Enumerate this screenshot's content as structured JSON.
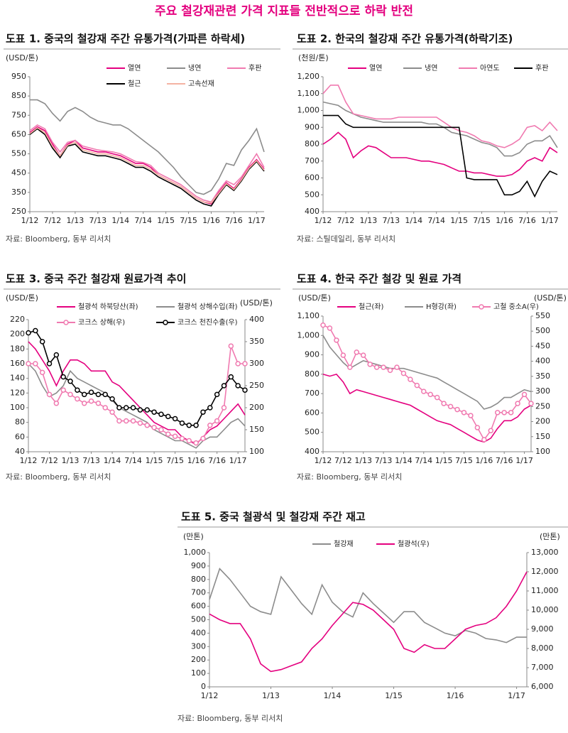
{
  "title": "주요 철강재관련 가격 지표들 전반적으로 하락 반전",
  "chart_data": [
    {
      "type": "line",
      "title": "도표 1. 중국의 철강재 주간 유통가격(가파른 하락세)",
      "y_label": "(USD/톤)",
      "source": "자료: Bloomberg, 동부 리서치",
      "categories": [
        "1/12",
        null,
        null,
        "7/12",
        null,
        null,
        "1/13",
        null,
        null,
        "7/13",
        null,
        null,
        "1/14",
        null,
        null,
        "7/14",
        null,
        null,
        "1/15",
        null,
        null,
        "7/15",
        null,
        null,
        "1/16",
        null,
        null,
        "7/16",
        null,
        null,
        "1/17",
        null
      ],
      "ylim": [
        250,
        950
      ],
      "yticks": [
        250,
        350,
        450,
        550,
        650,
        750,
        850,
        950
      ],
      "series": [
        {
          "name": "열연",
          "color": "#e4007f",
          "values": [
            660,
            690,
            670,
            600,
            540,
            600,
            620,
            580,
            570,
            560,
            560,
            550,
            540,
            520,
            500,
            500,
            480,
            440,
            420,
            400,
            380,
            350,
            320,
            300,
            290,
            350,
            400,
            370,
            420,
            480,
            520,
            470
          ]
        },
        {
          "name": "냉연",
          "color": "#8c8c8c",
          "values": [
            830,
            830,
            810,
            760,
            720,
            770,
            790,
            770,
            740,
            720,
            710,
            700,
            700,
            680,
            650,
            620,
            590,
            560,
            520,
            480,
            430,
            390,
            350,
            340,
            360,
            420,
            500,
            490,
            570,
            620,
            680,
            560
          ]
        },
        {
          "name": "후판",
          "color": "#f07ab0",
          "values": [
            670,
            700,
            680,
            610,
            560,
            610,
            620,
            590,
            580,
            570,
            565,
            560,
            550,
            530,
            510,
            505,
            490,
            450,
            430,
            410,
            390,
            360,
            330,
            310,
            300,
            360,
            410,
            390,
            430,
            490,
            550,
            480
          ]
        },
        {
          "name": "철근",
          "color": "#000000",
          "values": [
            650,
            680,
            650,
            580,
            530,
            590,
            600,
            560,
            550,
            540,
            540,
            530,
            520,
            500,
            480,
            480,
            460,
            430,
            410,
            390,
            370,
            340,
            310,
            290,
            280,
            340,
            390,
            360,
            410,
            470,
            510,
            460
          ]
        },
        {
          "name": "고속선재",
          "color": "#f4b3a3",
          "values": [
            655,
            685,
            660,
            590,
            540,
            595,
            610,
            570,
            560,
            550,
            550,
            540,
            530,
            510,
            490,
            490,
            470,
            440,
            420,
            400,
            380,
            350,
            320,
            300,
            295,
            345,
            395,
            365,
            415,
            475,
            515,
            465
          ]
        }
      ]
    },
    {
      "type": "line",
      "title": "도표 2. 한국의 철강재 주간 유통가격(하락기조)",
      "y_label": "(천원/톤)",
      "source": "자료: 스틸데일리, 동부 리서치",
      "categories": [
        "1/12",
        null,
        null,
        "7/12",
        null,
        null,
        "1/13",
        null,
        null,
        "7/13",
        null,
        null,
        "1/14",
        null,
        null,
        "7/14",
        null,
        null,
        "1/15",
        null,
        null,
        "7/15",
        null,
        null,
        "1/16",
        null,
        null,
        "7/16",
        null,
        null,
        "1/17",
        null
      ],
      "ylim": [
        400,
        1200
      ],
      "yticks": [
        400,
        500,
        600,
        700,
        800,
        900,
        {
          "value": 1000,
          "label": "1,000"
        },
        {
          "value": 1100,
          "label": "1,100"
        },
        {
          "value": 1200,
          "label": "1,200"
        }
      ],
      "series": [
        {
          "name": "열연",
          "color": "#e4007f",
          "values": [
            800,
            830,
            870,
            830,
            720,
            760,
            790,
            780,
            750,
            720,
            720,
            720,
            710,
            700,
            700,
            690,
            680,
            660,
            640,
            640,
            630,
            630,
            620,
            610,
            610,
            620,
            650,
            700,
            720,
            700,
            780,
            750
          ]
        },
        {
          "name": "냉연",
          "color": "#8c8c8c",
          "values": [
            1050,
            1040,
            1030,
            1000,
            980,
            960,
            950,
            940,
            930,
            930,
            930,
            930,
            930,
            930,
            920,
            920,
            900,
            870,
            860,
            850,
            830,
            810,
            800,
            780,
            730,
            730,
            750,
            800,
            820,
            820,
            850,
            780
          ]
        },
        {
          "name": "아연도",
          "color": "#f07ab0",
          "values": [
            1100,
            1150,
            1150,
            1050,
            980,
            970,
            960,
            950,
            950,
            950,
            960,
            960,
            960,
            960,
            960,
            960,
            930,
            900,
            880,
            870,
            850,
            820,
            810,
            790,
            780,
            800,
            830,
            900,
            910,
            880,
            930,
            880
          ]
        },
        {
          "name": "후판",
          "color": "#000000",
          "values": [
            970,
            970,
            970,
            920,
            900,
            900,
            900,
            900,
            900,
            900,
            900,
            900,
            900,
            900,
            900,
            900,
            900,
            900,
            900,
            600,
            590,
            590,
            590,
            590,
            500,
            500,
            520,
            580,
            490,
            580,
            640,
            620
          ]
        }
      ]
    },
    {
      "type": "line",
      "title": "도표 3. 중국 주간 철강재 원료가격 추이",
      "y_label": "(USD/톤)",
      "y2_label": "(USD/톤)",
      "source": "자료: Bloomberg, 동부 리서치",
      "categories": [
        "1/12",
        null,
        null,
        "7/12",
        null,
        null,
        "1/13",
        null,
        null,
        "7/13",
        null,
        null,
        "1/14",
        null,
        null,
        "7/14",
        null,
        null,
        "1/15",
        null,
        null,
        "7/15",
        null,
        null,
        "1/16",
        null,
        null,
        "7/16",
        null,
        null,
        "1/17",
        null
      ],
      "ylim": [
        40,
        220
      ],
      "yticks": [
        40,
        60,
        80,
        100,
        120,
        140,
        160,
        180,
        200,
        220
      ],
      "y2lim": [
        100,
        400
      ],
      "y2ticks": [
        100,
        150,
        200,
        250,
        300,
        350,
        400
      ],
      "series": [
        {
          "name": "철광석 하북당산(좌)",
          "color": "#e4007f",
          "values": [
            190,
            180,
            165,
            150,
            130,
            150,
            165,
            165,
            160,
            150,
            150,
            150,
            135,
            130,
            120,
            110,
            100,
            90,
            80,
            75,
            70,
            70,
            60,
            55,
            50,
            60,
            70,
            75,
            85,
            95,
            105,
            90
          ]
        },
        {
          "name": "철광석 상해수입(좌)",
          "color": "#8c8c8c",
          "values": [
            160,
            150,
            130,
            115,
            120,
            130,
            150,
            140,
            135,
            130,
            125,
            120,
            110,
            100,
            95,
            90,
            85,
            80,
            70,
            65,
            60,
            55,
            55,
            50,
            45,
            55,
            60,
            60,
            70,
            80,
            85,
            75
          ]
        },
        {
          "name": "코크스 상해(우)",
          "color": "#f07ab0",
          "axis": "y2",
          "marker": "o",
          "values": [
            300,
            300,
            280,
            230,
            210,
            240,
            230,
            220,
            210,
            215,
            210,
            200,
            190,
            170,
            170,
            170,
            165,
            160,
            155,
            150,
            140,
            135,
            130,
            125,
            120,
            130,
            160,
            170,
            200,
            340,
            300,
            300
          ]
        },
        {
          "name": "코크스 천진수출(우)",
          "color": "#000000",
          "axis": "y2",
          "marker": "o",
          "values": [
            370,
            375,
            350,
            300,
            320,
            270,
            260,
            240,
            230,
            235,
            230,
            230,
            220,
            200,
            200,
            200,
            195,
            195,
            190,
            185,
            180,
            175,
            165,
            160,
            160,
            190,
            200,
            230,
            250,
            270,
            250,
            240
          ]
        }
      ]
    },
    {
      "type": "line",
      "title": "도표 4. 한국 주간 철강 및 원료 가격",
      "y_label": "(USD/톤)",
      "y2_label": "(USD/톤)",
      "source": "자료: Bloomberg, 동부 리서치",
      "categories": [
        "1/12",
        null,
        null,
        "7/12",
        null,
        null,
        "1/13",
        null,
        null,
        "7/13",
        null,
        null,
        "1/14",
        null,
        null,
        "7/14",
        null,
        null,
        "1/15",
        null,
        null,
        "7/15",
        null,
        null,
        "1/16",
        null,
        null,
        "7/16",
        null,
        null,
        "1/17",
        null
      ],
      "ylim": [
        400,
        1100
      ],
      "yticks": [
        400,
        500,
        600,
        700,
        800,
        900,
        {
          "value": 1000,
          "label": "1,000"
        },
        {
          "value": 1100,
          "label": "1,100"
        }
      ],
      "y2lim": [
        100,
        550
      ],
      "y2ticks": [
        100,
        150,
        200,
        250,
        300,
        350,
        400,
        450,
        500,
        550
      ],
      "series": [
        {
          "name": "철근(좌)",
          "color": "#e4007f",
          "values": [
            800,
            790,
            800,
            760,
            700,
            720,
            710,
            700,
            690,
            680,
            670,
            660,
            650,
            640,
            620,
            600,
            580,
            560,
            550,
            540,
            520,
            500,
            480,
            460,
            450,
            470,
            520,
            560,
            560,
            580,
            620,
            640
          ]
        },
        {
          "name": "H형강(좌)",
          "color": "#8c8c8c",
          "values": [
            1000,
            940,
            900,
            860,
            830,
            850,
            870,
            860,
            850,
            840,
            830,
            830,
            830,
            820,
            810,
            800,
            790,
            780,
            760,
            740,
            720,
            700,
            680,
            660,
            620,
            630,
            650,
            680,
            680,
            700,
            720,
            710
          ]
        },
        {
          "name": "고철 중소A(우)",
          "color": "#f07ab0",
          "axis": "y2",
          "marker": "o",
          "values": [
            520,
            510,
            470,
            420,
            380,
            430,
            420,
            390,
            380,
            380,
            370,
            380,
            360,
            340,
            320,
            300,
            290,
            280,
            260,
            250,
            240,
            230,
            220,
            180,
            140,
            170,
            230,
            230,
            230,
            260,
            290,
            260
          ]
        }
      ]
    },
    {
      "type": "line",
      "title": "도표 5. 중국 철광석 및 철강재 주간 재고",
      "y_label": "(만톤)",
      "y2_label": "(만톤)",
      "source": "자료: Bloomberg, 동부 리서치",
      "categories": [
        "1/12",
        null,
        null,
        null,
        null,
        null,
        "1/13",
        null,
        null,
        null,
        null,
        null,
        "1/14",
        null,
        null,
        null,
        null,
        null,
        "1/15",
        null,
        null,
        null,
        null,
        null,
        "1/16",
        null,
        null,
        null,
        null,
        null,
        "1/17",
        null
      ],
      "ylim": [
        0,
        1000
      ],
      "yticks": [
        0,
        100,
        200,
        300,
        400,
        500,
        600,
        700,
        800,
        900,
        {
          "value": 1000,
          "label": "1,000"
        }
      ],
      "y2lim": [
        6000,
        13000
      ],
      "y2ticks": [
        {
          "value": 6000,
          "label": "6,000"
        },
        {
          "value": 7000,
          "label": "7,000"
        },
        {
          "value": 8000,
          "label": "8,000"
        },
        {
          "value": 9000,
          "label": "9,000"
        },
        {
          "value": 10000,
          "label": "10,000"
        },
        {
          "value": 11000,
          "label": "11,000"
        },
        {
          "value": 12000,
          "label": "12,000"
        },
        {
          "value": 13000,
          "label": "13,000"
        }
      ],
      "series": [
        {
          "name": "철강재",
          "color": "#8c8c8c",
          "values": [
            650,
            880,
            800,
            700,
            600,
            560,
            540,
            820,
            720,
            620,
            540,
            760,
            630,
            560,
            520,
            700,
            620,
            550,
            480,
            560,
            560,
            480,
            440,
            400,
            380,
            420,
            400,
            360,
            350,
            330,
            370,
            370
          ]
        },
        {
          "name": "철광석(우)",
          "color": "#e4007f",
          "axis": "y2",
          "values": [
            9800,
            9500,
            9300,
            9300,
            8500,
            7200,
            6800,
            6900,
            7100,
            7300,
            8000,
            8500,
            9200,
            9800,
            10400,
            10300,
            10000,
            9500,
            9000,
            8000,
            7800,
            8200,
            8000,
            8000,
            8500,
            9000,
            9200,
            9300,
            9600,
            10200,
            11000,
            12000
          ]
        }
      ]
    }
  ]
}
